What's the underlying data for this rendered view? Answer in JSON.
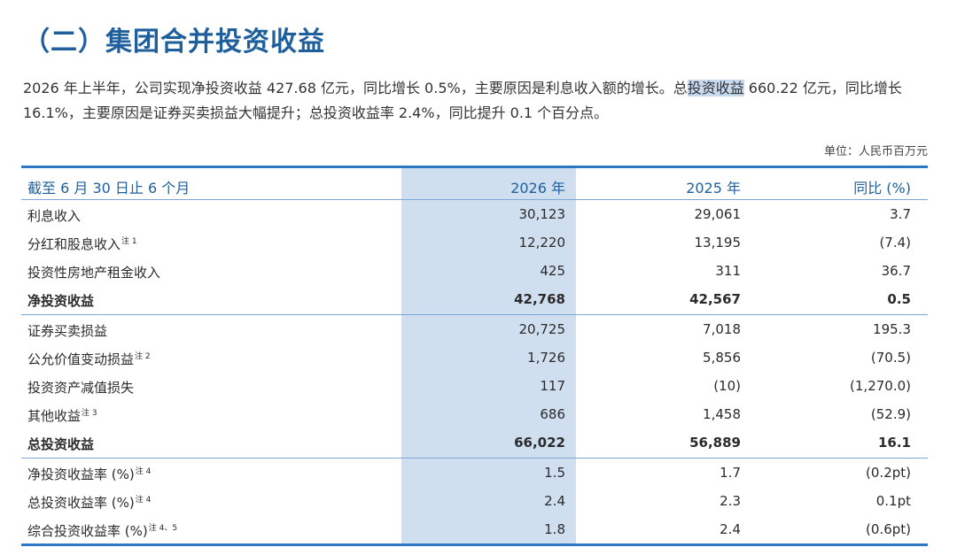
{
  "title": "（二）集团合并投资收益",
  "paragraph": {
    "part1": "2026 年上半年，公司实现净投资收益 427.68 亿元，同比增长 0.5%，主要原因是利息收入额的增长。总",
    "highlight": "投资收益",
    "part2": " 660.22 亿元，同比增长 16.1%，主要原因是证券买卖损益大幅提升；总投资收益率 2.4%，同比提升 0.1 个百分点。"
  },
  "unit": "单位：人民币百万元",
  "colors": {
    "accent": "#1f5f9c",
    "rule": "#2d76c1",
    "highlight_col": "#cfdff0"
  },
  "table": {
    "headers": [
      "截至 6 月 30 日止 6 个月",
      "2026 年",
      "2025 年",
      "同比 (%)"
    ],
    "rows": [
      {
        "label": "利息收入",
        "note": "",
        "v2026": "30,123",
        "v2025": "29,061",
        "yoy": "3.7",
        "bold": false
      },
      {
        "label": "分红和股息收入",
        "note": "注 1",
        "v2026": "12,220",
        "v2025": "13,195",
        "yoy": "(7.4)",
        "bold": false
      },
      {
        "label": "投资性房地产租金收入",
        "note": "",
        "v2026": "425",
        "v2025": "311",
        "yoy": "36.7",
        "bold": false
      },
      {
        "label": "净投资收益",
        "note": "",
        "v2026": "42,768",
        "v2025": "42,567",
        "yoy": "0.5",
        "bold": true
      },
      {
        "label": "证券买卖损益",
        "note": "",
        "v2026": "20,725",
        "v2025": "7,018",
        "yoy": "195.3",
        "bold": false
      },
      {
        "label": "公允价值变动损益",
        "note": "注 2",
        "v2026": "1,726",
        "v2025": "5,856",
        "yoy": "(70.5)",
        "bold": false
      },
      {
        "label": "投资资产减值损失",
        "note": "",
        "v2026": "117",
        "v2025": "(10)",
        "yoy": "(1,270.0)",
        "bold": false
      },
      {
        "label": "其他收益",
        "note": "注 3",
        "v2026": "686",
        "v2025": "1,458",
        "yoy": "(52.9)",
        "bold": false
      },
      {
        "label": "总投资收益",
        "note": "",
        "v2026": "66,022",
        "v2025": "56,889",
        "yoy": "16.1",
        "bold": true
      },
      {
        "label": "净投资收益率 (%)",
        "note": "注 4",
        "v2026": "1.5",
        "v2025": "1.7",
        "yoy": "(0.2pt)",
        "bold": false
      },
      {
        "label": "总投资收益率 (%)",
        "note": "注 4",
        "v2026": "2.4",
        "v2025": "2.3",
        "yoy": "0.1pt",
        "bold": false
      },
      {
        "label": "综合投资收益率 (%)",
        "note": "注 4、5",
        "v2026": "1.8",
        "v2025": "2.4",
        "yoy": "(0.6pt)",
        "bold": false
      }
    ]
  }
}
